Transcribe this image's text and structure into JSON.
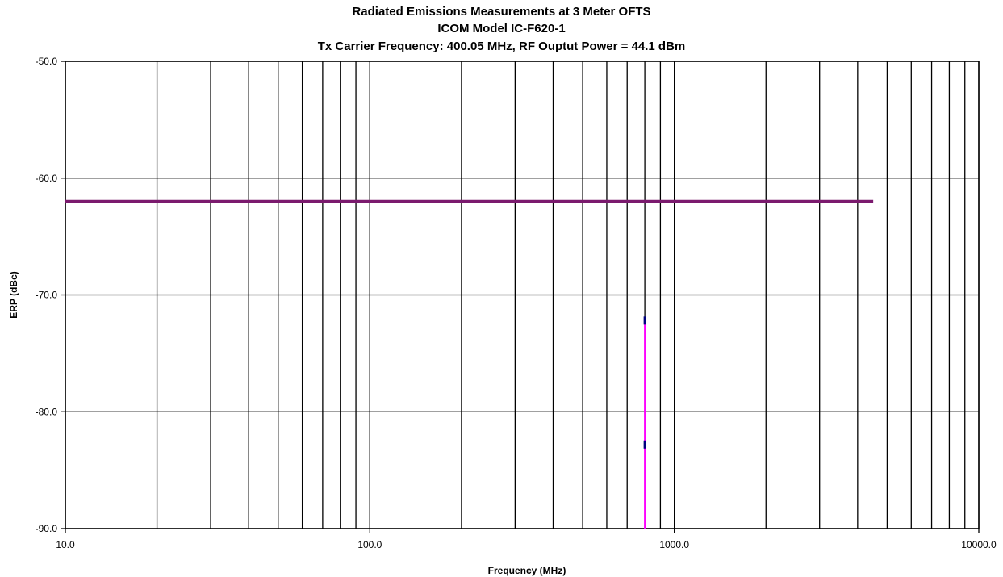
{
  "chart_data": {
    "type": "line",
    "title_lines": [
      "Radiated Emissions Measurements at 3 Meter OFTS",
      "ICOM Model IC-F620-1",
      "Tx Carrier Frequency: 400.05 MHz, RF Ouptut Power = 44.1 dBm"
    ],
    "xlabel": "Frequency (MHz)",
    "ylabel": "ERP (dBc)",
    "x_scale": "log",
    "xlim": [
      10,
      10000
    ],
    "ylim": [
      -90,
      -50
    ],
    "x_ticks": [
      10,
      100,
      1000,
      10000
    ],
    "x_tick_labels": [
      "10.0",
      "100.0",
      "1000.0",
      "10000.0"
    ],
    "y_ticks": [
      -50,
      -60,
      -70,
      -80,
      -90
    ],
    "y_tick_labels": [
      "-50.0",
      "-60.0",
      "-70.0",
      "-80.0",
      "-90.0"
    ],
    "grid": true,
    "legend": "none",
    "series": [
      {
        "color": "#7B1A6E",
        "style": "line",
        "points": [
          [
            10,
            -62
          ],
          [
            4500,
            -62
          ]
        ]
      },
      {
        "color": "#FF00FF",
        "style": "vertical-stem",
        "points": [
          [
            800.1,
            -90
          ],
          [
            800.1,
            -72.2
          ]
        ]
      },
      {
        "color": "#000080",
        "style": "marker",
        "points": [
          [
            800.1,
            -72.2
          ],
          [
            800.1,
            -82.8
          ]
        ]
      }
    ]
  }
}
